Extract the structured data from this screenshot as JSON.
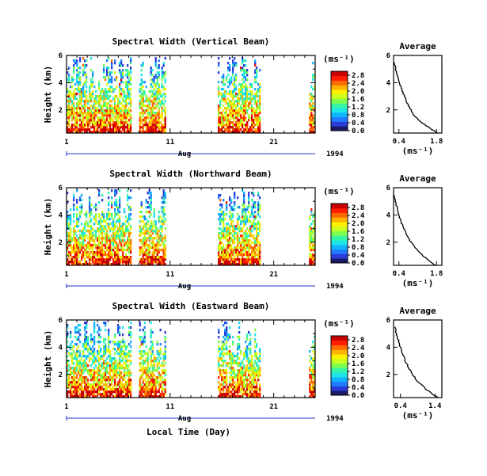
{
  "figure": {
    "x_axis_label": "Local Time (Day)",
    "month_label": "Aug",
    "year_label": "1994",
    "y_axis_label": "Height (km)",
    "colorbar_unit": "(ms⁻¹)",
    "average_title": "Average",
    "average_x_unit": "(ms⁻¹)",
    "colormap": [
      "#1a1a66",
      "#2b3bd6",
      "#1f7bff",
      "#11b4ff",
      "#1ee6e6",
      "#38f5a6",
      "#7dff50",
      "#c8ff1e",
      "#ffef00",
      "#ffb300",
      "#ff6a00",
      "#ff1c00",
      "#c80000"
    ]
  },
  "chart_data": [
    {
      "type": "heatmap",
      "title": "Spectral Width (Vertical Beam)",
      "xlabel": "Local Time (Day)",
      "ylabel": "Height (km)",
      "xlim": [
        1,
        25
      ],
      "ylim": [
        0.3,
        6
      ],
      "x_ticks": [
        "1",
        "11",
        "21"
      ],
      "y_ticks": [
        "2",
        "4",
        "6"
      ],
      "colorbar": {
        "label": "(ms⁻¹)",
        "ticks": [
          "0.0",
          "0.4",
          "0.8",
          "1.2",
          "1.6",
          "2.0",
          "2.4",
          "2.8"
        ],
        "range": [
          0,
          3.0
        ]
      },
      "data_segments_days": [
        [
          1,
          7.2
        ],
        [
          8.0,
          10.5
        ],
        [
          15.6,
          19.6
        ],
        [
          24.4,
          25
        ]
      ],
      "average_profile": {
        "title": "Average",
        "xlabel": "(ms⁻¹)",
        "x_ticks": [
          "0.4",
          "1.8"
        ],
        "y_ticks": [
          "2",
          "4",
          "6"
        ],
        "xlim": [
          0.2,
          2.0
        ],
        "ylim": [
          0.3,
          6
        ],
        "height_km": [
          0.3,
          0.6,
          1.0,
          1.5,
          2.0,
          2.5,
          3.0,
          3.5,
          4.0,
          4.5,
          5.0,
          5.5
        ],
        "width_ms": [
          1.85,
          1.6,
          1.3,
          1.0,
          0.85,
          0.7,
          0.6,
          0.5,
          0.42,
          0.35,
          0.28,
          0.22
        ]
      }
    },
    {
      "type": "heatmap",
      "title": "Spectral Width (Northward Beam)",
      "xlabel": "Local Time (Day)",
      "ylabel": "Height (km)",
      "xlim": [
        1,
        25
      ],
      "ylim": [
        0.3,
        6
      ],
      "x_ticks": [
        "1",
        "11",
        "21"
      ],
      "y_ticks": [
        "2",
        "4",
        "6"
      ],
      "colorbar": {
        "label": "(ms⁻¹)",
        "ticks": [
          "0.0",
          "0.4",
          "0.8",
          "1.2",
          "1.6",
          "2.0",
          "2.4",
          "2.8"
        ],
        "range": [
          0,
          3.0
        ]
      },
      "data_segments_days": [
        [
          1,
          7.2
        ],
        [
          8.0,
          10.5
        ],
        [
          15.6,
          19.6
        ],
        [
          24.4,
          25
        ]
      ],
      "average_profile": {
        "title": "Average",
        "xlabel": "(ms⁻¹)",
        "x_ticks": [
          "0.4",
          "1.8"
        ],
        "y_ticks": [
          "2",
          "4",
          "6"
        ],
        "xlim": [
          0.2,
          2.0
        ],
        "ylim": [
          0.3,
          6
        ],
        "height_km": [
          0.3,
          0.6,
          1.0,
          1.5,
          2.0,
          2.5,
          3.0,
          3.5,
          4.0,
          4.5,
          5.0,
          5.5
        ],
        "width_ms": [
          1.75,
          1.55,
          1.3,
          1.05,
          0.85,
          0.7,
          0.58,
          0.48,
          0.4,
          0.33,
          0.27,
          0.22
        ]
      }
    },
    {
      "type": "heatmap",
      "title": "Spectral Width (Eastward Beam)",
      "xlabel": "Local Time (Day)",
      "ylabel": "Height (km)",
      "xlim": [
        1,
        25
      ],
      "ylim": [
        0.3,
        6
      ],
      "x_ticks": [
        "1",
        "11",
        "21"
      ],
      "y_ticks": [
        "2",
        "4",
        "6"
      ],
      "colorbar": {
        "label": "(ms⁻¹)",
        "ticks": [
          "0.0",
          "0.4",
          "0.8",
          "1.2",
          "1.6",
          "2.0",
          "2.4",
          "2.8"
        ],
        "range": [
          0,
          3.0
        ]
      },
      "data_segments_days": [
        [
          1,
          7.2
        ],
        [
          8.0,
          10.5
        ],
        [
          15.6,
          19.6
        ],
        [
          24.4,
          25
        ]
      ],
      "average_profile": {
        "title": "Average",
        "xlabel": "(ms⁻¹)",
        "x_ticks": [
          "0.4",
          "1.4"
        ],
        "y_ticks": [
          "2",
          "4",
          "6"
        ],
        "xlim": [
          0.2,
          1.6
        ],
        "ylim": [
          0.3,
          6
        ],
        "height_km": [
          0.3,
          0.6,
          1.0,
          1.5,
          2.0,
          2.5,
          3.0,
          3.5,
          4.0,
          4.5,
          5.0,
          5.5
        ],
        "width_ms": [
          1.5,
          1.3,
          1.1,
          0.9,
          0.75,
          0.63,
          0.54,
          0.46,
          0.4,
          0.34,
          0.28,
          0.24
        ]
      }
    }
  ]
}
